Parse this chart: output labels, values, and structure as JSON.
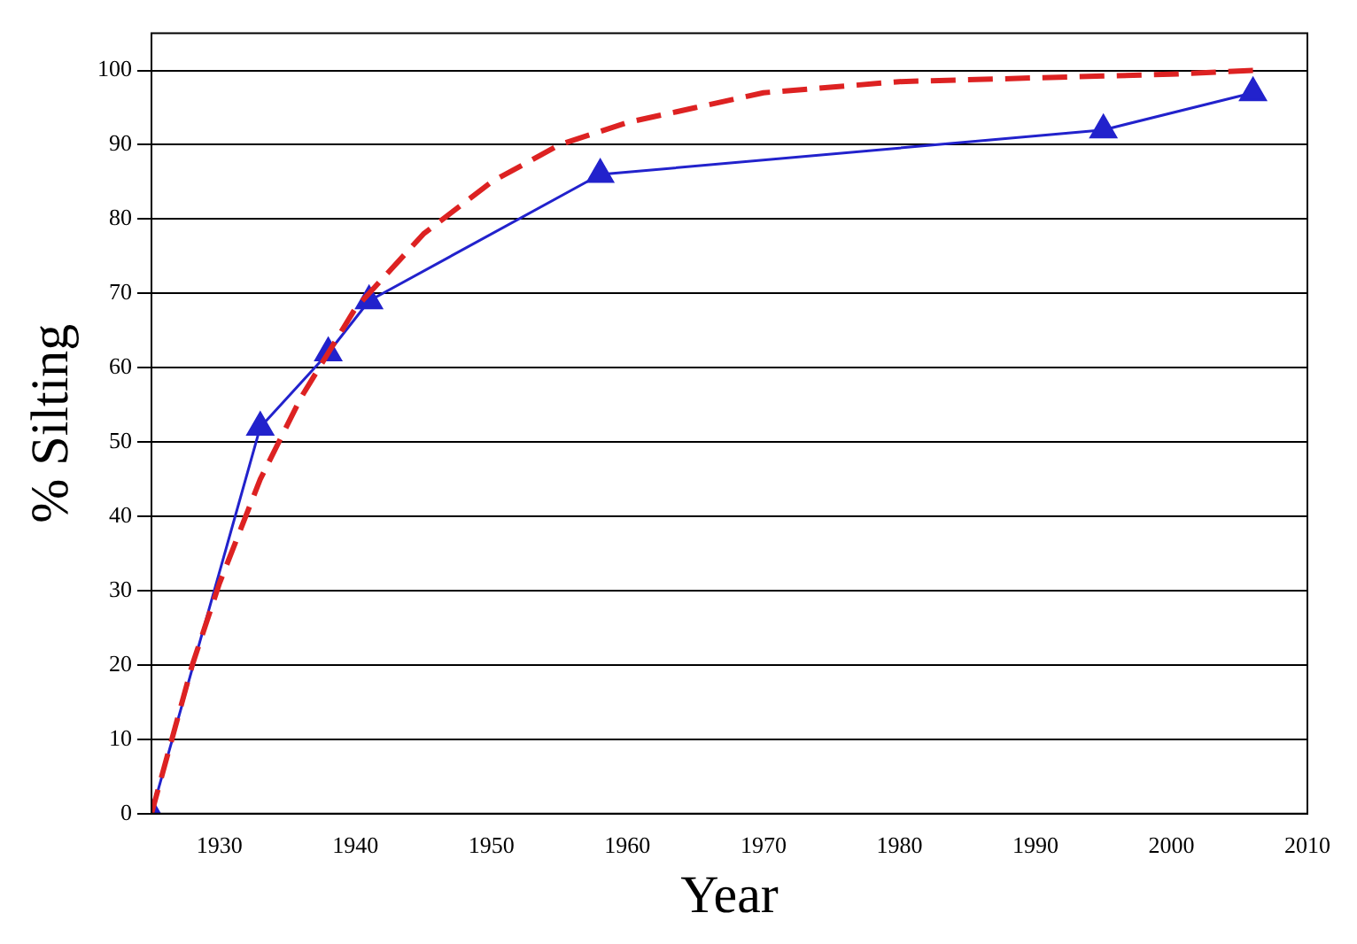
{
  "chart_data": {
    "type": "line",
    "xlabel": "Year",
    "ylabel": "% Silting",
    "xlim": [
      1925,
      2010
    ],
    "xticks": [
      1930,
      1940,
      1950,
      1960,
      1970,
      1980,
      1990,
      2000,
      2010
    ],
    "ylim": [
      0,
      105
    ],
    "yticks": [
      0,
      10,
      20,
      30,
      40,
      50,
      60,
      70,
      80,
      90,
      100
    ],
    "grid": "y",
    "legend": false,
    "series": [
      {
        "type": "line",
        "color": "#dd2222",
        "line_style": "dashed",
        "marker": "none",
        "x": [
          1925,
          1928,
          1930,
          1933,
          1936,
          1940,
          1945,
          1950,
          1955,
          1960,
          1965,
          1970,
          1980,
          1990,
          2000,
          2006
        ],
        "values": [
          0,
          20,
          31,
          45,
          56,
          68,
          78,
          85,
          90,
          93,
          95,
          97,
          98.5,
          99,
          99.5,
          100
        ]
      },
      {
        "type": "line",
        "color": "#2222cc",
        "line_style": "solid",
        "marker": "triangle",
        "x": [
          1925,
          1933,
          1938,
          1941,
          1958,
          1995,
          2006
        ],
        "values": [
          0,
          52,
          62,
          69,
          86,
          92,
          97
        ]
      }
    ]
  }
}
